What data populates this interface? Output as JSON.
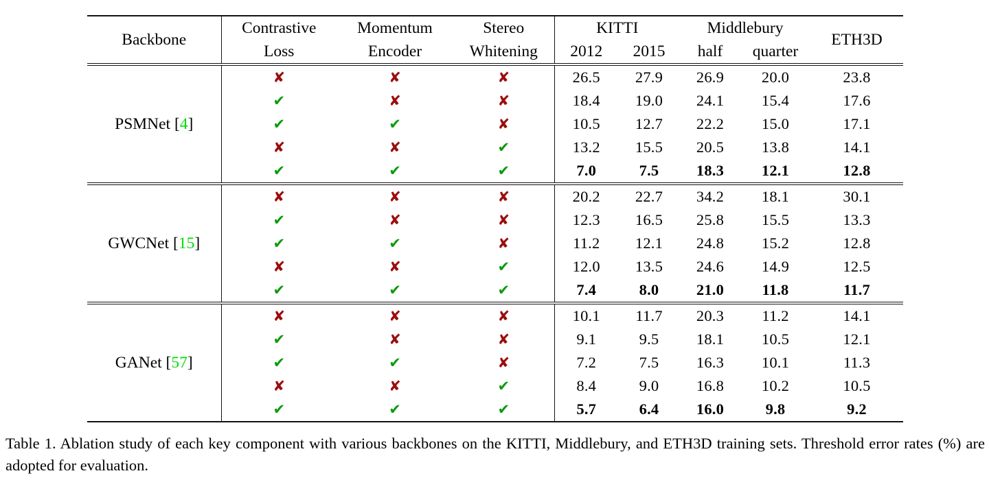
{
  "colors": {
    "check_green": "#0b9b0b",
    "cross_red": "#9b0d0d",
    "citation_green": "#00dd00",
    "rule_black": "#111111"
  },
  "icons": {
    "check": "✔",
    "cross": "✘"
  },
  "table": {
    "header": {
      "backbone": "Backbone",
      "component_cols": [
        {
          "line1": "Contrastive",
          "line2": "Loss"
        },
        {
          "line1": "Momentum",
          "line2": "Encoder"
        },
        {
          "line1": "Stereo",
          "line2": "Whitening"
        }
      ],
      "dataset_groups": [
        {
          "name": "KITTI",
          "subs": [
            "2012",
            "2015"
          ]
        },
        {
          "name": "Middlebury",
          "subs": [
            "half",
            "quarter"
          ]
        }
      ],
      "eth3d": "ETH3D"
    },
    "groups": [
      {
        "name": "PSMNet",
        "cite": "4",
        "rows": [
          {
            "flags": [
              "cross",
              "cross",
              "cross"
            ],
            "values": [
              "26.5",
              "27.9",
              "26.9",
              "20.0",
              "23.8"
            ],
            "bold": false
          },
          {
            "flags": [
              "check",
              "cross",
              "cross"
            ],
            "values": [
              "18.4",
              "19.0",
              "24.1",
              "15.4",
              "17.6"
            ],
            "bold": false
          },
          {
            "flags": [
              "check",
              "check",
              "cross"
            ],
            "values": [
              "10.5",
              "12.7",
              "22.2",
              "15.0",
              "17.1"
            ],
            "bold": false
          },
          {
            "flags": [
              "cross",
              "cross",
              "check"
            ],
            "values": [
              "13.2",
              "15.5",
              "20.5",
              "13.8",
              "14.1"
            ],
            "bold": false
          },
          {
            "flags": [
              "check",
              "check",
              "check"
            ],
            "values": [
              "7.0",
              "7.5",
              "18.3",
              "12.1",
              "12.8"
            ],
            "bold": true
          }
        ]
      },
      {
        "name": "GWCNet",
        "cite": "15",
        "rows": [
          {
            "flags": [
              "cross",
              "cross",
              "cross"
            ],
            "values": [
              "20.2",
              "22.7",
              "34.2",
              "18.1",
              "30.1"
            ],
            "bold": false
          },
          {
            "flags": [
              "check",
              "cross",
              "cross"
            ],
            "values": [
              "12.3",
              "16.5",
              "25.8",
              "15.5",
              "13.3"
            ],
            "bold": false
          },
          {
            "flags": [
              "check",
              "check",
              "cross"
            ],
            "values": [
              "11.2",
              "12.1",
              "24.8",
              "15.2",
              "12.8"
            ],
            "bold": false
          },
          {
            "flags": [
              "cross",
              "cross",
              "check"
            ],
            "values": [
              "12.0",
              "13.5",
              "24.6",
              "14.9",
              "12.5"
            ],
            "bold": false
          },
          {
            "flags": [
              "check",
              "check",
              "check"
            ],
            "values": [
              "7.4",
              "8.0",
              "21.0",
              "11.8",
              "11.7"
            ],
            "bold": true
          }
        ]
      },
      {
        "name": "GANet",
        "cite": "57",
        "rows": [
          {
            "flags": [
              "cross",
              "cross",
              "cross"
            ],
            "values": [
              "10.1",
              "11.7",
              "20.3",
              "11.2",
              "14.1"
            ],
            "bold": false
          },
          {
            "flags": [
              "check",
              "cross",
              "cross"
            ],
            "values": [
              "9.1",
              "9.5",
              "18.1",
              "10.5",
              "12.1"
            ],
            "bold": false
          },
          {
            "flags": [
              "check",
              "check",
              "cross"
            ],
            "values": [
              "7.2",
              "7.5",
              "16.3",
              "10.1",
              "11.3"
            ],
            "bold": false
          },
          {
            "flags": [
              "cross",
              "cross",
              "check"
            ],
            "values": [
              "8.4",
              "9.0",
              "16.8",
              "10.2",
              "10.5"
            ],
            "bold": false
          },
          {
            "flags": [
              "check",
              "check",
              "check"
            ],
            "values": [
              "5.7",
              "6.4",
              "16.0",
              "9.8",
              "9.2"
            ],
            "bold": true
          }
        ]
      }
    ],
    "caption": "Table 1.  Ablation study of each key component with various backbones on the KITTI, Middlebury, and ETH3D training sets. Threshold error rates (%) are adopted for evaluation."
  }
}
